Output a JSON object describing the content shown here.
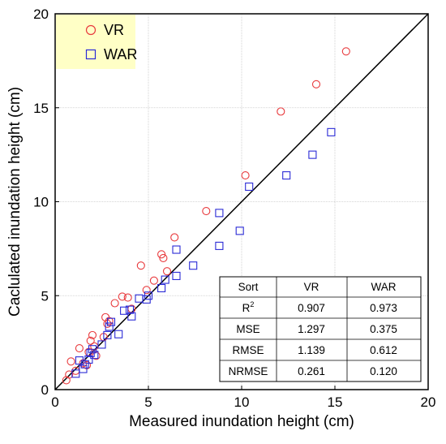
{
  "chart_data": {
    "type": "scatter",
    "title": "",
    "xlabel": "Measured inundation height (cm)",
    "ylabel": "Caclulated inundation height (cm)",
    "xlim": [
      0,
      20
    ],
    "ylim": [
      0,
      20
    ],
    "xticks": [
      "0",
      "5",
      "10",
      "15",
      "20"
    ],
    "yticks": [
      "0",
      "5",
      "10",
      "15",
      "20"
    ],
    "grid": true,
    "legend_position": "top-left",
    "reference_line": "y = x",
    "series": [
      {
        "name": "VR",
        "marker": "circle",
        "color": "#e8393c",
        "points": [
          [
            0.6,
            0.5
          ],
          [
            0.75,
            0.8
          ],
          [
            0.85,
            1.5
          ],
          [
            1.1,
            1.0
          ],
          [
            1.3,
            2.2
          ],
          [
            1.5,
            1.4
          ],
          [
            1.7,
            1.3
          ],
          [
            1.8,
            2.0
          ],
          [
            1.9,
            2.6
          ],
          [
            2.0,
            2.9
          ],
          [
            2.1,
            2.3
          ],
          [
            2.2,
            1.8
          ],
          [
            2.6,
            2.8
          ],
          [
            2.7,
            3.85
          ],
          [
            2.8,
            3.5
          ],
          [
            2.9,
            3.65
          ],
          [
            3.2,
            4.6
          ],
          [
            3.6,
            4.95
          ],
          [
            3.9,
            4.9
          ],
          [
            4.1,
            4.3
          ],
          [
            4.6,
            6.6
          ],
          [
            4.9,
            5.3
          ],
          [
            5.3,
            5.8
          ],
          [
            5.7,
            7.2
          ],
          [
            5.8,
            7.0
          ],
          [
            6.0,
            6.3
          ],
          [
            6.4,
            8.1
          ],
          [
            8.1,
            9.5
          ],
          [
            10.2,
            11.4
          ],
          [
            12.1,
            14.8
          ],
          [
            14.0,
            16.25
          ],
          [
            15.6,
            18.0
          ]
        ]
      },
      {
        "name": "WAR",
        "marker": "square",
        "color": "#2a2ad6",
        "points": [
          [
            1.1,
            0.85
          ],
          [
            1.3,
            1.55
          ],
          [
            1.5,
            1.1
          ],
          [
            1.6,
            1.35
          ],
          [
            1.8,
            1.6
          ],
          [
            1.9,
            1.95
          ],
          [
            2.0,
            2.15
          ],
          [
            2.1,
            1.85
          ],
          [
            2.5,
            2.4
          ],
          [
            2.8,
            2.9
          ],
          [
            2.9,
            3.35
          ],
          [
            3.0,
            3.6
          ],
          [
            3.4,
            2.95
          ],
          [
            3.7,
            4.2
          ],
          [
            4.0,
            4.25
          ],
          [
            4.1,
            3.9
          ],
          [
            4.5,
            4.85
          ],
          [
            4.9,
            4.8
          ],
          [
            5.0,
            5.0
          ],
          [
            5.7,
            5.4
          ],
          [
            5.9,
            5.85
          ],
          [
            6.5,
            6.05
          ],
          [
            6.5,
            7.45
          ],
          [
            7.4,
            6.6
          ],
          [
            8.8,
            7.65
          ],
          [
            8.8,
            9.4
          ],
          [
            9.9,
            8.45
          ],
          [
            10.4,
            10.8
          ],
          [
            12.4,
            11.4
          ],
          [
            13.8,
            12.5
          ],
          [
            14.8,
            13.7
          ]
        ]
      }
    ],
    "table": {
      "headers": [
        "Sort",
        "VR",
        "WAR"
      ],
      "rows": [
        {
          "label": "R",
          "sup": "2",
          "vr": "0.907",
          "war": "0.973"
        },
        {
          "label": "MSE",
          "sup": "",
          "vr": "1.297",
          "war": "0.375"
        },
        {
          "label": "RMSE",
          "sup": "",
          "vr": "1.139",
          "war": "0.612"
        },
        {
          "label": "NRMSE",
          "sup": "",
          "vr": "0.261",
          "war": "0.120"
        }
      ]
    }
  }
}
